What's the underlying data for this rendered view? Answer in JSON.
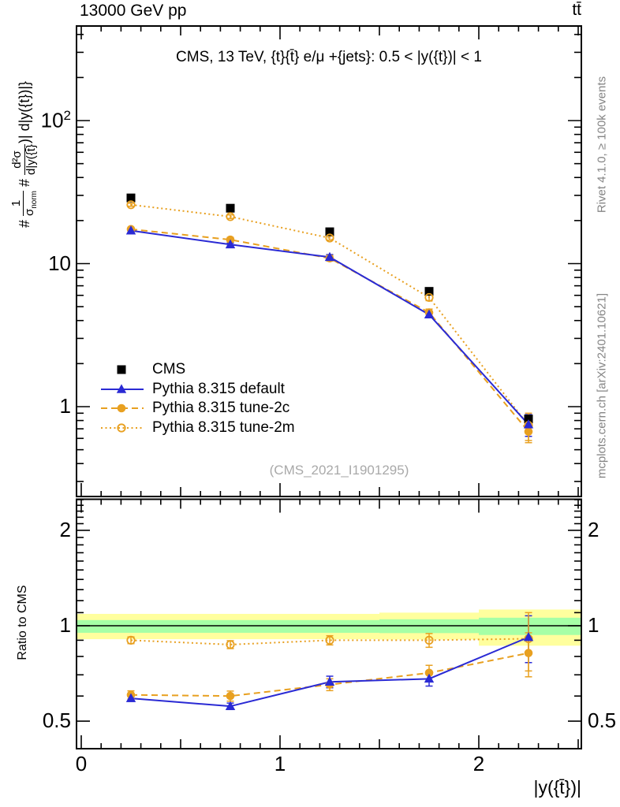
{
  "header": {
    "collision": "13000 GeV pp",
    "process": "tt̄"
  },
  "main_panel": {
    "title": "CMS, 13 TeV, {t}{t̄} e/μ +{jets}: 0.5 < |y({t})| < 1",
    "watermark": "(CMS_2021_I1901295)",
    "ylabel": {
      "hash1": "#",
      "num1": "1",
      "sigma": "σ",
      "sub1": "norm",
      "hash2": "#",
      "num2": "d²σ",
      "den2": "d|y({t̄}",
      "close": ")|",
      "suffix": "d|y({t})|}"
    },
    "yticks": [
      {
        "v": 100,
        "label": "10",
        "sup": "2"
      },
      {
        "v": 10,
        "label": "10"
      },
      {
        "v": 1,
        "label": "1"
      }
    ]
  },
  "ratio_panel": {
    "ylabel": "Ratio to CMS",
    "yticks": [
      {
        "v": 2,
        "label": "2"
      },
      {
        "v": 1,
        "label": "1"
      },
      {
        "v": 0.5,
        "label": "0.5"
      }
    ]
  },
  "xaxis": {
    "title": "|y({t̄})|",
    "ticks": [
      {
        "v": 0,
        "label": "0"
      },
      {
        "v": 1,
        "label": "1"
      },
      {
        "v": 2,
        "label": "2"
      }
    ]
  },
  "sidebar": {
    "rivet": "Rivet 4.1.0, ≥ 100k events",
    "mcplots": "mcplots.cern.ch [arXiv:2401.10621]"
  },
  "colors": {
    "blue": "#2a2ad4",
    "orange": "#e8a020",
    "black": "#000000",
    "band_yellow": "#ffff9e",
    "band_green": "#a6ffa6",
    "gray_text": "#858585"
  },
  "chart_data": {
    "type": "line",
    "title": "CMS, 13 TeV, {t}{t̄} e/μ +{jets}: 0.5 < |y({t})| < 1",
    "xlabel": "|y({t̄})|",
    "ylabel": "(1/σnorm) d²σ/(d|y({t̄})| d|y({t})|)",
    "yscale": "log",
    "ylim": [
      0.24,
      460
    ],
    "xlim": [
      0,
      2.5
    ],
    "legend_position": "middle-left",
    "grid": false,
    "x": [
      0.25,
      0.75,
      1.25,
      1.75,
      2.25
    ],
    "bin_edges": [
      0,
      0.5,
      1,
      1.5,
      2,
      2.5
    ],
    "series": [
      {
        "name": "CMS",
        "marker": "square",
        "color": "#000000",
        "linestyle": "none",
        "values": [
          28.8,
          24.4,
          16.7,
          6.4,
          0.82
        ],
        "errors": [
          0.6,
          0.5,
          0.35,
          0.15,
          0.05
        ]
      },
      {
        "name": "Pythia 8.315 default",
        "marker": "triangle",
        "color": "#2a2ad4",
        "linestyle": "solid",
        "values": [
          17.0,
          13.6,
          11.1,
          4.4,
          0.75
        ],
        "errors": [
          0.37,
          0.32,
          0.47,
          0.22,
          0.13
        ],
        "ratio": [
          0.59,
          0.557,
          0.665,
          0.68,
          0.92
        ],
        "ratio_errors": [
          0.013,
          0.013,
          0.028,
          0.035,
          0.155
        ]
      },
      {
        "name": "Pythia 8.315 tune-2c",
        "marker": "circle",
        "color": "#e8a020",
        "linestyle": "dashed",
        "values": [
          17.4,
          14.7,
          10.9,
          4.55,
          0.67
        ],
        "errors": [
          0.52,
          0.54,
          0.47,
          0.26,
          0.11
        ],
        "ratio": [
          0.605,
          0.6,
          0.652,
          0.71,
          0.82
        ],
        "ratio_errors": [
          0.018,
          0.022,
          0.028,
          0.04,
          0.13
        ]
      },
      {
        "name": "Pythia 8.315 tune-2m",
        "marker": "circle-open",
        "color": "#e8a020",
        "linestyle": "dotted",
        "values": [
          25.8,
          21.3,
          15.1,
          5.8,
          0.74
        ],
        "errors": [
          0.63,
          0.61,
          0.5,
          0.29,
          0.16
        ],
        "ratio": [
          0.9,
          0.872,
          0.9,
          0.9,
          0.91
        ],
        "ratio_errors": [
          0.022,
          0.025,
          0.03,
          0.045,
          0.19
        ]
      }
    ],
    "ratio": {
      "ylabel": "Ratio to CMS",
      "yscale": "log",
      "ylim": [
        0.41,
        2.51
      ],
      "reference": 1,
      "bands": {
        "yellow": [
          [
            0.907,
            1.09
          ],
          [
            0.907,
            1.09
          ],
          [
            0.907,
            1.09
          ],
          [
            0.905,
            1.1
          ],
          [
            0.865,
            1.125
          ]
        ],
        "green": [
          [
            0.95,
            1.042
          ],
          [
            0.95,
            1.042
          ],
          [
            0.95,
            1.042
          ],
          [
            0.948,
            1.048
          ],
          [
            0.935,
            1.06
          ]
        ]
      }
    }
  }
}
